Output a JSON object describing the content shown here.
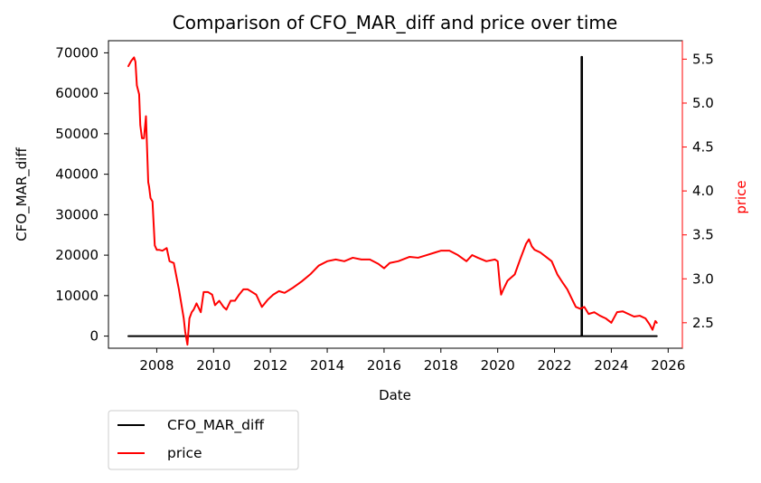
{
  "chart_data": {
    "type": "line",
    "title": "Comparison of CFO_MAR_diff and price over time",
    "xlabel": "Date",
    "ylabel": "CFO_MAR_diff",
    "ylabel_right": "price",
    "xlim": [
      2006.3,
      2026.5
    ],
    "ylim": [
      -3000,
      73000
    ],
    "ylim_right": [
      2.21,
      5.71
    ],
    "x_ticks": [
      2008,
      2010,
      2012,
      2014,
      2016,
      2018,
      2020,
      2022,
      2024,
      2026
    ],
    "y_ticks": [
      0,
      10000,
      20000,
      30000,
      40000,
      50000,
      60000,
      70000
    ],
    "y_ticks_right": [
      2.5,
      3.0,
      3.5,
      4.0,
      4.5,
      5.0,
      5.5
    ],
    "grid": false,
    "legend_position": "below-left",
    "colors": {
      "CFO_MAR_diff": "#000000",
      "price": "#ff0000",
      "right_axis": "#ff0000"
    },
    "series": [
      {
        "name": "CFO_MAR_diff",
        "axis": "left",
        "color": "#000000",
        "x": [
          2007.0,
          2022.95,
          2022.95,
          2022.97,
          2022.97,
          2025.6
        ],
        "y": [
          0,
          0,
          69000,
          69000,
          0,
          0
        ]
      },
      {
        "name": "price",
        "axis": "right",
        "color": "#ff0000",
        "x": [
          2007.0,
          2007.1,
          2007.2,
          2007.25,
          2007.3,
          2007.38,
          2007.42,
          2007.48,
          2007.55,
          2007.62,
          2007.7,
          2007.73,
          2007.78,
          2007.85,
          2007.93,
          2008.0,
          2008.08,
          2008.2,
          2008.35,
          2008.45,
          2008.6,
          2008.78,
          2008.95,
          2009.0,
          2009.08,
          2009.15,
          2009.23,
          2009.3,
          2009.4,
          2009.55,
          2009.65,
          2009.8,
          2009.95,
          2010.05,
          2010.2,
          2010.35,
          2010.45,
          2010.6,
          2010.75,
          2010.9,
          2011.05,
          2011.2,
          2011.35,
          2011.5,
          2011.7,
          2011.9,
          2012.1,
          2012.3,
          2012.5,
          2012.8,
          2013.1,
          2013.4,
          2013.7,
          2014.0,
          2014.3,
          2014.6,
          2014.9,
          2015.2,
          2015.5,
          2015.8,
          2016.0,
          2016.2,
          2016.5,
          2016.9,
          2017.2,
          2017.5,
          2017.8,
          2018.0,
          2018.3,
          2018.6,
          2018.9,
          2019.1,
          2019.3,
          2019.6,
          2019.9,
          2020.0,
          2020.08,
          2020.12,
          2020.2,
          2020.35,
          2020.6,
          2020.8,
          2021.0,
          2021.1,
          2021.2,
          2021.3,
          2021.5,
          2021.7,
          2021.9,
          2022.1,
          2022.3,
          2022.45,
          2022.6,
          2022.75,
          2022.9,
          2023.05,
          2023.2,
          2023.4,
          2023.6,
          2023.8,
          2024.0,
          2024.2,
          2024.4,
          2024.6,
          2024.8,
          2025.0,
          2025.2,
          2025.35,
          2025.45,
          2025.55,
          2025.6
        ],
        "y": [
          5.42,
          5.48,
          5.52,
          5.47,
          5.2,
          5.1,
          4.75,
          4.6,
          4.6,
          4.85,
          4.1,
          4.05,
          3.92,
          3.88,
          3.38,
          3.33,
          3.33,
          3.32,
          3.35,
          3.2,
          3.18,
          2.88,
          2.55,
          2.4,
          2.25,
          2.55,
          2.62,
          2.65,
          2.72,
          2.62,
          2.85,
          2.85,
          2.82,
          2.7,
          2.75,
          2.68,
          2.65,
          2.75,
          2.75,
          2.82,
          2.88,
          2.88,
          2.85,
          2.82,
          2.68,
          2.76,
          2.82,
          2.86,
          2.84,
          2.9,
          2.97,
          3.05,
          3.15,
          3.2,
          3.22,
          3.2,
          3.24,
          3.22,
          3.22,
          3.17,
          3.12,
          3.18,
          3.2,
          3.25,
          3.24,
          3.27,
          3.3,
          3.32,
          3.32,
          3.27,
          3.2,
          3.27,
          3.24,
          3.2,
          3.22,
          3.2,
          2.92,
          2.82,
          2.88,
          2.98,
          3.05,
          3.23,
          3.4,
          3.45,
          3.37,
          3.33,
          3.3,
          3.25,
          3.2,
          3.05,
          2.95,
          2.88,
          2.78,
          2.68,
          2.66,
          2.68,
          2.6,
          2.62,
          2.58,
          2.55,
          2.5,
          2.62,
          2.63,
          2.6,
          2.57,
          2.58,
          2.55,
          2.48,
          2.42,
          2.52,
          2.5
        ]
      }
    ]
  }
}
